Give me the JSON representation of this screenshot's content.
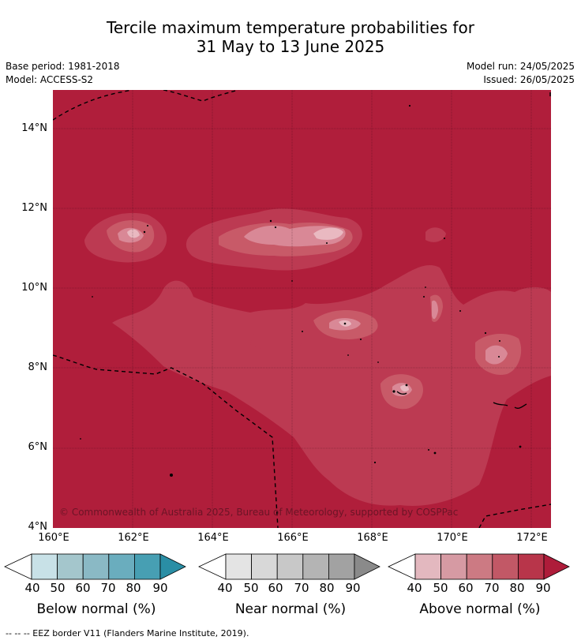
{
  "header": {
    "title_line1": "Tercile maximum temperature probabilities for",
    "title_line2": "31 May to 13 June 2025",
    "base_period": "Base period: 1981-2018",
    "model": "Model: ACCESS-S2",
    "model_run": "Model run: 24/05/2025",
    "issued": "Issued: 26/05/2025"
  },
  "map": {
    "copyright": "© Commonwealth of Australia 2025, Bureau of Meteorology, supported by COSPPac",
    "lat_labels": [
      "14°N",
      "12°N",
      "10°N",
      "8°N",
      "6°N",
      "4°N"
    ],
    "lon_labels": [
      "160°E",
      "162°E",
      "164°E",
      "166°E",
      "168°E",
      "170°E",
      "172°E"
    ],
    "lon_range": [
      160,
      172.5
    ],
    "lat_range": [
      4,
      15
    ]
  },
  "legends": [
    {
      "title": "Below normal (%)",
      "ticks": [
        "40",
        "50",
        "60",
        "70",
        "80",
        "90"
      ],
      "colors": [
        "#ffffff",
        "#c8e1e7",
        "#a4c6cc",
        "#8ab9c5",
        "#6aadbe",
        "#479fb3",
        "#2a8ea5"
      ]
    },
    {
      "title": "Near normal (%)",
      "ticks": [
        "40",
        "50",
        "60",
        "70",
        "80",
        "90"
      ],
      "colors": [
        "#ffffff",
        "#e4e4e4",
        "#d8d8d8",
        "#c8c8c8",
        "#b4b4b4",
        "#a2a2a2",
        "#8a8a8a"
      ]
    },
    {
      "title": "Above normal (%)",
      "ticks": [
        "40",
        "50",
        "60",
        "70",
        "80",
        "90"
      ],
      "colors": [
        "#ffffff",
        "#e3b8bf",
        "#d69aa3",
        "#cc7a83",
        "#c25866",
        "#b8354a",
        "#ae1c3a"
      ]
    }
  ],
  "footnote": "--  --  -- EEZ border V11 (Flanders Marine Institute, 2019)."
}
